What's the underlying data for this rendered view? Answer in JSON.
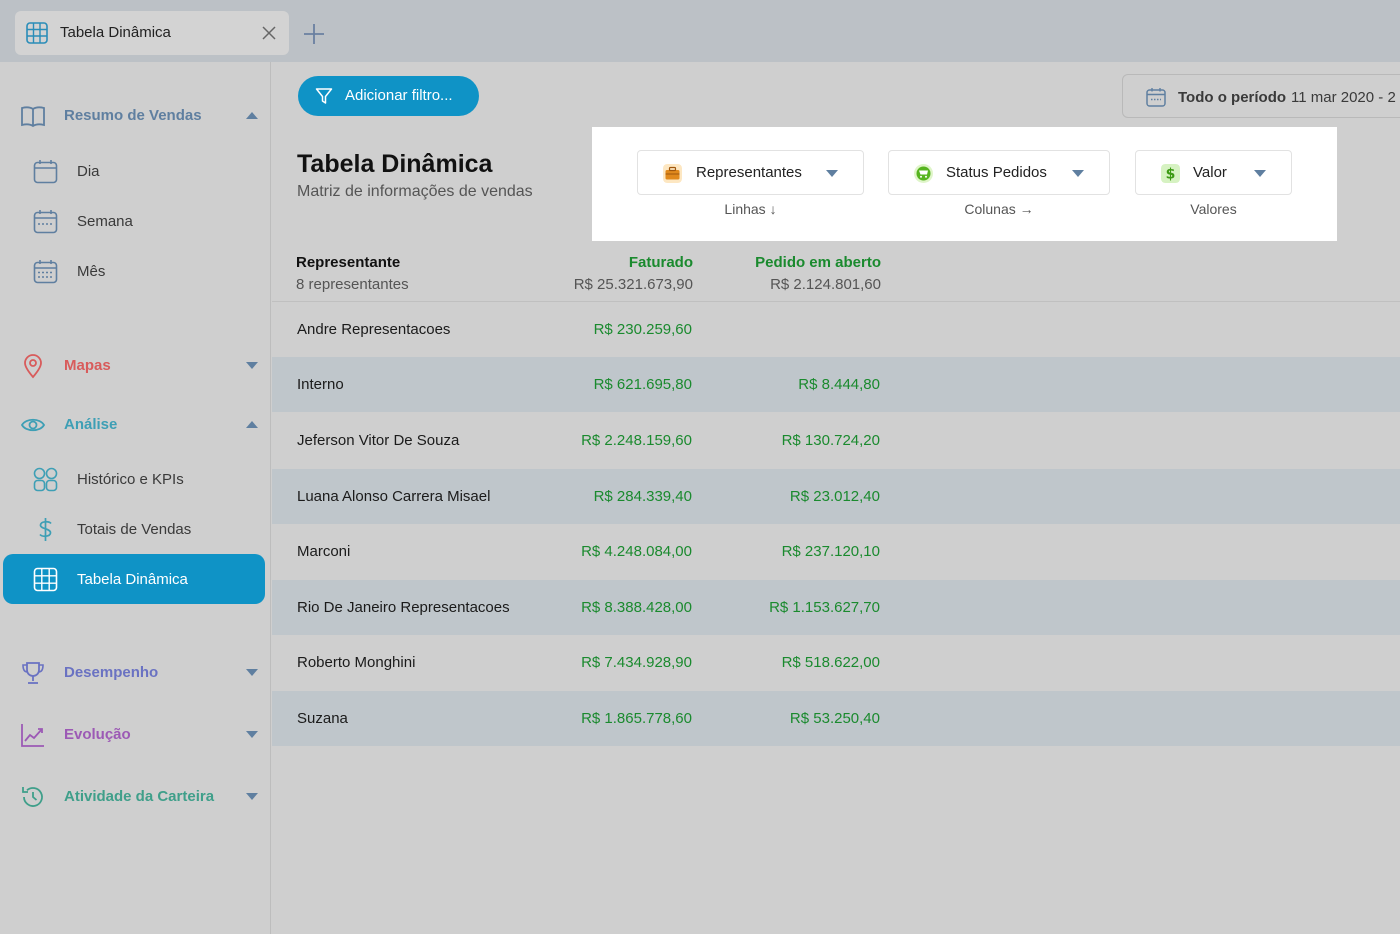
{
  "tab": {
    "title": "Tabela Dinâmica"
  },
  "colors": {
    "accent": "#0f93c6",
    "positive": "#1a8a2e",
    "maps": "#d85b5b",
    "analise": "#3e9fb5",
    "desempenho": "#6a72c2",
    "evolucao": "#9c5ab5",
    "atividade": "#3f9f8a"
  },
  "sidebar": {
    "resumo": {
      "label": "Resumo de Vendas",
      "items": [
        {
          "label": "Dia"
        },
        {
          "label": "Semana"
        },
        {
          "label": "Mês"
        }
      ]
    },
    "mapas": {
      "label": "Mapas"
    },
    "analise": {
      "label": "Análise",
      "items": [
        {
          "label": "Histórico e KPIs"
        },
        {
          "label": "Totais de Vendas"
        },
        {
          "label": "Tabela Dinâmica"
        }
      ]
    },
    "desempenho": {
      "label": "Desempenho"
    },
    "evolucao": {
      "label": "Evolução"
    },
    "atividade": {
      "label": "Atividade da Carteira"
    }
  },
  "toolbar": {
    "filter_label": "Adicionar filtro...",
    "period_label": "Todo o período",
    "period_date": "11 mar 2020 - 2"
  },
  "page": {
    "title": "Tabela Dinâmica",
    "subtitle": "Matriz de informações de vendas"
  },
  "config": {
    "rows": {
      "label": "Representantes",
      "caption": "Linhas ↓"
    },
    "columns": {
      "label": "Status Pedidos",
      "caption": "Colunas →"
    },
    "values": {
      "label": "Valor",
      "caption": "Valores"
    }
  },
  "table": {
    "header": {
      "name": "Representante",
      "count": "8 representantes",
      "col1": "Faturado",
      "col1_total": "R$ 25.321.673,90",
      "col2": "Pedido em aberto",
      "col2_total": "R$ 2.124.801,60"
    },
    "rows": [
      {
        "name": "Andre Representacoes",
        "faturado": "R$ 230.259,60",
        "aberto": ""
      },
      {
        "name": "Interno",
        "faturado": "R$ 621.695,80",
        "aberto": "R$ 8.444,80"
      },
      {
        "name": "Jeferson Vitor De Souza",
        "faturado": "R$ 2.248.159,60",
        "aberto": "R$ 130.724,20"
      },
      {
        "name": "Luana Alonso Carrera Misael",
        "faturado": "R$ 284.339,40",
        "aberto": "R$ 23.012,40"
      },
      {
        "name": "Marconi",
        "faturado": "R$ 4.248.084,00",
        "aberto": "R$ 237.120,10"
      },
      {
        "name": "Rio De Janeiro Representacoes",
        "faturado": "R$ 8.388.428,00",
        "aberto": "R$ 1.153.627,70"
      },
      {
        "name": "Roberto Monghini",
        "faturado": "R$ 7.434.928,90",
        "aberto": "R$ 518.622,00"
      },
      {
        "name": "Suzana",
        "faturado": "R$ 1.865.778,60",
        "aberto": "R$ 53.250,40"
      }
    ]
  }
}
